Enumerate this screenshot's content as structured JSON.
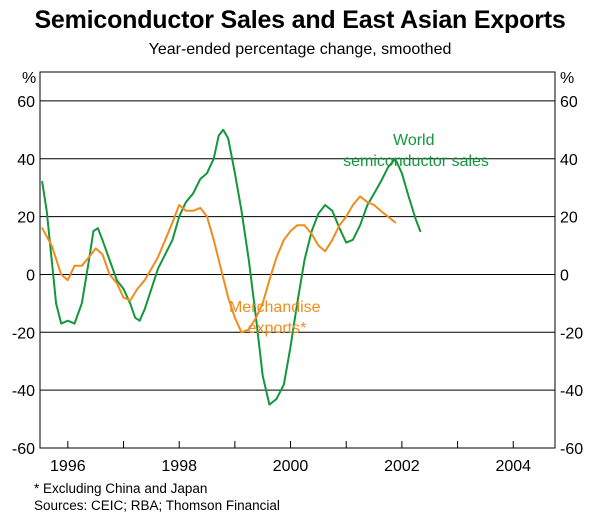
{
  "chart_data": {
    "type": "line",
    "title": "Semiconductor Sales and East Asian Exports",
    "subtitle": "Year-ended percentage change, smoothed",
    "unit_left": "%",
    "unit_right": "%",
    "xlim": [
      1995.5,
      2004.75
    ],
    "ylim": [
      -60,
      70
    ],
    "y_ticks": [
      60,
      40,
      20,
      0,
      -20,
      -40,
      -60
    ],
    "y_tick_labels": [
      "60",
      "40",
      "20",
      "0",
      "-20",
      "-40",
      "-60"
    ],
    "x_tick_labels": [
      {
        "label": "1996",
        "x": 1996.0
      },
      {
        "label": "1998",
        "x": 1998.0
      },
      {
        "label": "2000",
        "x": 2000.0
      },
      {
        "label": "2002",
        "x": 2002.0
      },
      {
        "label": "2004",
        "x": 2004.0
      }
    ],
    "year_boundaries": [
      1996,
      1997,
      1998,
      1999,
      2000,
      2001,
      2002,
      2003,
      2004
    ],
    "series": [
      {
        "name": "World semiconductor sales",
        "color": "#14963c",
        "label_lines": [
          "World",
          "semiconductor sales"
        ],
        "points": [
          [
            1995.54,
            32
          ],
          [
            1995.62,
            22
          ],
          [
            1995.71,
            5
          ],
          [
            1995.79,
            -10
          ],
          [
            1995.88,
            -17
          ],
          [
            1996.0,
            -16
          ],
          [
            1996.12,
            -17
          ],
          [
            1996.25,
            -10
          ],
          [
            1996.38,
            5
          ],
          [
            1996.46,
            15
          ],
          [
            1996.54,
            16
          ],
          [
            1996.62,
            12
          ],
          [
            1996.75,
            5
          ],
          [
            1996.88,
            -2
          ],
          [
            1997.0,
            -5
          ],
          [
            1997.12,
            -10
          ],
          [
            1997.21,
            -15
          ],
          [
            1997.29,
            -16
          ],
          [
            1997.38,
            -12
          ],
          [
            1997.5,
            -5
          ],
          [
            1997.62,
            2
          ],
          [
            1997.75,
            7
          ],
          [
            1997.88,
            12
          ],
          [
            1998.0,
            20
          ],
          [
            1998.12,
            25
          ],
          [
            1998.25,
            28
          ],
          [
            1998.38,
            33
          ],
          [
            1998.5,
            35
          ],
          [
            1998.62,
            40
          ],
          [
            1998.71,
            48
          ],
          [
            1998.79,
            50
          ],
          [
            1998.88,
            47
          ],
          [
            1999.0,
            35
          ],
          [
            1999.12,
            22
          ],
          [
            1999.25,
            5
          ],
          [
            1999.38,
            -15
          ],
          [
            1999.5,
            -35
          ],
          [
            1999.62,
            -45
          ],
          [
            1999.75,
            -43
          ],
          [
            1999.88,
            -38
          ],
          [
            2000.0,
            -25
          ],
          [
            2000.12,
            -10
          ],
          [
            2000.25,
            5
          ],
          [
            2000.38,
            15
          ],
          [
            2000.5,
            21
          ],
          [
            2000.62,
            24
          ],
          [
            2000.75,
            22
          ],
          [
            2000.88,
            16
          ],
          [
            2001.0,
            11
          ],
          [
            2001.12,
            12
          ],
          [
            2001.25,
            17
          ],
          [
            2001.38,
            24
          ],
          [
            2001.5,
            28
          ],
          [
            2001.62,
            32
          ],
          [
            2001.75,
            37
          ],
          [
            2001.88,
            40
          ],
          [
            2002.0,
            35
          ],
          [
            2002.12,
            27
          ],
          [
            2002.25,
            19
          ],
          [
            2002.33,
            15
          ]
        ]
      },
      {
        "name": "Merchandise exports*",
        "color": "#f08c1e",
        "label_lines": [
          "Merchandise",
          "exports*"
        ],
        "points": [
          [
            1995.54,
            16
          ],
          [
            1995.71,
            10
          ],
          [
            1995.88,
            0
          ],
          [
            1996.0,
            -2
          ],
          [
            1996.12,
            3
          ],
          [
            1996.25,
            3
          ],
          [
            1996.38,
            6
          ],
          [
            1996.5,
            9
          ],
          [
            1996.62,
            7
          ],
          [
            1996.75,
            0
          ],
          [
            1996.88,
            -3
          ],
          [
            1997.0,
            -8
          ],
          [
            1997.12,
            -9
          ],
          [
            1997.25,
            -5
          ],
          [
            1997.38,
            -2
          ],
          [
            1997.5,
            2
          ],
          [
            1997.62,
            6
          ],
          [
            1997.75,
            12
          ],
          [
            1997.88,
            18
          ],
          [
            1998.0,
            24
          ],
          [
            1998.12,
            22
          ],
          [
            1998.25,
            22
          ],
          [
            1998.38,
            23
          ],
          [
            1998.5,
            20
          ],
          [
            1998.62,
            12
          ],
          [
            1998.75,
            2
          ],
          [
            1998.88,
            -8
          ],
          [
            1999.0,
            -15
          ],
          [
            1999.12,
            -20
          ],
          [
            1999.25,
            -19
          ],
          [
            1999.38,
            -15
          ],
          [
            1999.5,
            -10
          ],
          [
            1999.62,
            -2
          ],
          [
            1999.75,
            6
          ],
          [
            1999.88,
            12
          ],
          [
            2000.0,
            15
          ],
          [
            2000.12,
            17
          ],
          [
            2000.25,
            17
          ],
          [
            2000.38,
            14
          ],
          [
            2000.5,
            10
          ],
          [
            2000.62,
            8
          ],
          [
            2000.75,
            12
          ],
          [
            2000.88,
            17
          ],
          [
            2001.0,
            20
          ],
          [
            2001.12,
            24
          ],
          [
            2001.25,
            27
          ],
          [
            2001.38,
            25
          ],
          [
            2001.5,
            24
          ],
          [
            2001.62,
            22
          ],
          [
            2001.75,
            20
          ],
          [
            2001.88,
            18
          ]
        ]
      }
    ],
    "footnote_lines": [
      "*   Excluding China and Japan",
      "Sources: CEIC; RBA; Thomson Financial"
    ]
  }
}
